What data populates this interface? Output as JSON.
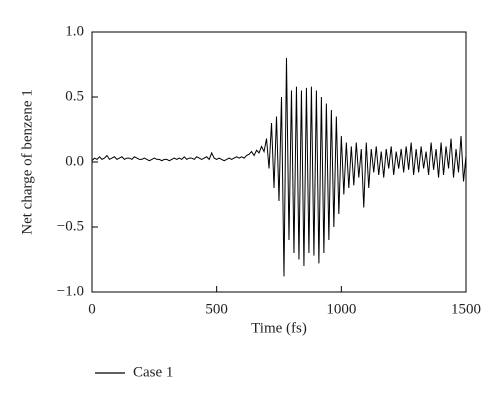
{
  "chart_data": {
    "type": "line",
    "xlabel": "Time (fs)",
    "ylabel": "Net charge of benzene 1",
    "x": [
      0,
      10,
      20,
      30,
      40,
      50,
      60,
      70,
      80,
      90,
      100,
      110,
      120,
      130,
      140,
      150,
      160,
      170,
      180,
      190,
      200,
      210,
      220,
      230,
      240,
      250,
      260,
      270,
      280,
      290,
      300,
      310,
      320,
      330,
      340,
      350,
      360,
      370,
      380,
      390,
      400,
      410,
      420,
      430,
      440,
      450,
      460,
      470,
      480,
      490,
      500,
      510,
      520,
      530,
      540,
      550,
      560,
      570,
      580,
      590,
      600,
      610,
      620,
      630,
      640,
      650,
      660,
      670,
      680,
      690,
      700,
      710,
      720,
      730,
      740,
      750,
      760,
      770,
      780,
      790,
      800,
      810,
      820,
      830,
      840,
      850,
      860,
      870,
      880,
      890,
      900,
      910,
      920,
      930,
      940,
      950,
      960,
      970,
      980,
      990,
      1000,
      1010,
      1020,
      1030,
      1040,
      1050,
      1060,
      1070,
      1080,
      1090,
      1100,
      1110,
      1120,
      1130,
      1140,
      1150,
      1160,
      1170,
      1180,
      1190,
      1200,
      1210,
      1220,
      1230,
      1240,
      1250,
      1260,
      1270,
      1280,
      1290,
      1300,
      1310,
      1320,
      1330,
      1340,
      1350,
      1360,
      1370,
      1380,
      1390,
      1400,
      1410,
      1420,
      1430,
      1440,
      1450,
      1460,
      1470,
      1480,
      1490,
      1500
    ],
    "series": [
      {
        "name": "Case 1",
        "color": "#000000",
        "values": [
          0.01,
          0.03,
          0.02,
          0.04,
          0.02,
          0.03,
          0.05,
          0.02,
          0.03,
          0.04,
          0.02,
          0.03,
          0.04,
          0.02,
          0.03,
          0.03,
          0.02,
          0.04,
          0.03,
          0.02,
          0.02,
          0.03,
          0.02,
          0.01,
          0.02,
          0.03,
          0.02,
          0.02,
          0.01,
          0.02,
          0.02,
          0.01,
          0.02,
          0.03,
          0.02,
          0.03,
          0.02,
          0.04,
          0.02,
          0.03,
          0.03,
          0.02,
          0.04,
          0.03,
          0.02,
          0.03,
          0.04,
          0.02,
          0.07,
          0.03,
          0.02,
          0.03,
          0.02,
          0.01,
          0.02,
          0.03,
          0.02,
          0.03,
          0.04,
          0.03,
          0.04,
          0.03,
          0.05,
          0.06,
          0.08,
          0.05,
          0.09,
          0.07,
          0.12,
          0.08,
          0.18,
          -0.05,
          0.3,
          -0.2,
          0.35,
          -0.3,
          0.5,
          -0.88,
          0.8,
          -0.6,
          0.55,
          -0.7,
          0.58,
          -0.75,
          0.55,
          -0.8,
          0.57,
          -0.7,
          0.58,
          -0.72,
          0.55,
          -0.78,
          0.5,
          -0.7,
          0.45,
          -0.6,
          0.4,
          -0.5,
          0.35,
          -0.4,
          0.2,
          -0.25,
          0.15,
          -0.2,
          0.12,
          -0.18,
          0.15,
          -0.12,
          0.1,
          -0.35,
          0.15,
          -0.2,
          0.1,
          -0.08,
          0.12,
          -0.1,
          0.08,
          -0.12,
          0.1,
          -0.05,
          0.12,
          -0.1,
          0.08,
          -0.05,
          0.1,
          -0.08,
          0.12,
          -0.06,
          0.15,
          -0.1,
          0.1,
          -0.08,
          0.12,
          -0.05,
          0.08,
          -0.1,
          0.15,
          -0.06,
          0.1,
          -0.12,
          0.15,
          -0.1,
          0.12,
          -0.05,
          0.18,
          -0.12,
          0.1,
          -0.08,
          0.2,
          -0.15,
          0.05
        ]
      }
    ],
    "xlim": [
      0,
      1500
    ],
    "xticks": [
      0,
      500,
      1000,
      1500
    ],
    "ylim": [
      -1,
      1
    ],
    "yticks": [
      {
        "value": -1,
        "label": "−1.0"
      },
      {
        "value": -0.5,
        "label": "−0.5"
      },
      {
        "value": 0,
        "label": "0.0"
      },
      {
        "value": 0.5,
        "label": "0.5"
      },
      {
        "value": 1,
        "label": "1.0"
      }
    ],
    "grid": false,
    "legend": "bottom-left"
  }
}
